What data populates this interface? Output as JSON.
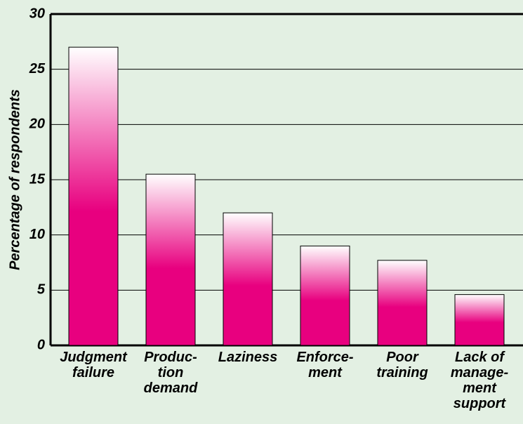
{
  "chart_data": {
    "type": "bar",
    "y_axis_label": "Percentage of respondents",
    "categories": [
      "Judgment\nfailure",
      "Produc-\ntion\ndemand",
      "Laziness",
      "Enforce-\nment",
      "Poor\ntraining",
      "Lack of\nmanage-\nment\nsupport"
    ],
    "values": [
      27,
      15.5,
      12,
      9,
      7.7,
      4.6
    ],
    "color": "#e8007f",
    "ylim": [
      0,
      30
    ],
    "yticks": [
      0,
      5,
      10,
      15,
      20,
      25,
      30
    ],
    "grid": true
  }
}
